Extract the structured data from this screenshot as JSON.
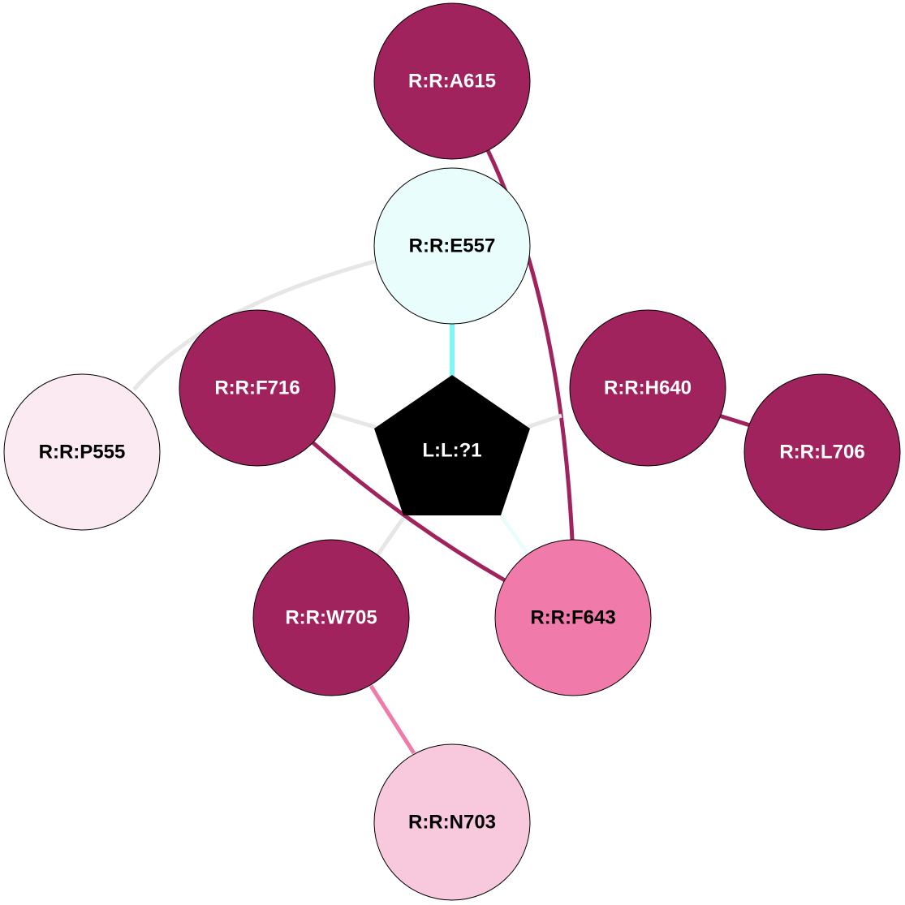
{
  "colors": {
    "dark": "#a0235e",
    "cyan": "#e8fdfc",
    "pale_pink": "#fbeaf2",
    "pink": "#f07aa9",
    "light_pink": "#f8c8dd",
    "ligand": "#000000",
    "gray_edge": "#e6e6e6",
    "cyan_edge": "#7ff7f7"
  },
  "ligand": {
    "label": "L:L:?1"
  },
  "nodes": [
    {
      "id": "A615",
      "label": "R:R:A615",
      "fill": "#a0235e",
      "text": "#ffffff"
    },
    {
      "id": "E557",
      "label": "R:R:E557",
      "fill": "#e8fdfc",
      "text": "#000000"
    },
    {
      "id": "F716",
      "label": "R:R:F716",
      "fill": "#a0235e",
      "text": "#ffffff"
    },
    {
      "id": "H640",
      "label": "R:R:H640",
      "fill": "#a0235e",
      "text": "#ffffff"
    },
    {
      "id": "P555",
      "label": "R:R:P555",
      "fill": "#fbeaf2",
      "text": "#000000"
    },
    {
      "id": "L706",
      "label": "R:R:L706",
      "fill": "#a0235e",
      "text": "#ffffff"
    },
    {
      "id": "W705",
      "label": "R:R:W705",
      "fill": "#a0235e",
      "text": "#ffffff"
    },
    {
      "id": "F643",
      "label": "R:R:F643",
      "fill": "#f07aa9",
      "text": "#000000"
    },
    {
      "id": "N703",
      "label": "R:R:N703",
      "fill": "#f8c8dd",
      "text": "#000000"
    }
  ],
  "edges": [
    {
      "from": "A615",
      "to": "F643",
      "color": "#a0235e"
    },
    {
      "from": "E557",
      "to": "P555",
      "color": "#e6e6e6"
    },
    {
      "from": "E557",
      "to": "L:L:?1",
      "color": "#7ff7f7"
    },
    {
      "from": "F716",
      "to": "L:L:?1",
      "color": "#e6e6e6"
    },
    {
      "from": "H640",
      "to": "L:L:?1",
      "color": "#e6e6e6"
    },
    {
      "from": "H640",
      "to": "L706",
      "color": "#a0235e"
    },
    {
      "from": "F716",
      "to": "F643",
      "color": "#a0235e"
    },
    {
      "from": "L:L:?1",
      "to": "W705",
      "color": "#e6e6e6"
    },
    {
      "from": "L:L:?1",
      "to": "F643",
      "color": "#e8fdfc"
    },
    {
      "from": "W705",
      "to": "N703",
      "color": "#f07aa9"
    }
  ]
}
